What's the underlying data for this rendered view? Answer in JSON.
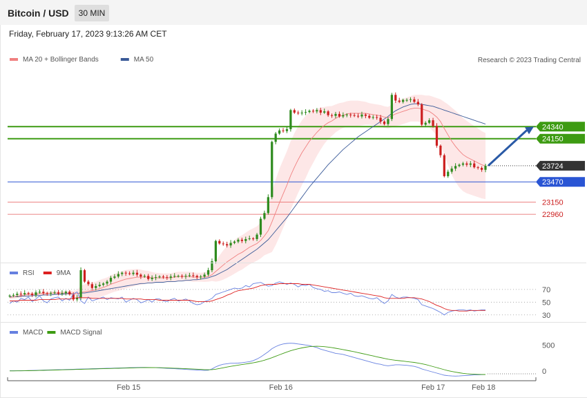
{
  "header": {
    "title": "Bitcoin / USD",
    "timeframe": "30 MIN"
  },
  "datetime": "Friday, February 17, 2023 9:13:26 AM CET",
  "colors": {
    "up": "#2e8b1e",
    "down": "#cc1f1f",
    "ma20": "#f08080",
    "bollinger": "#fde3e3",
    "ma50": "#3a5a98",
    "resistance": "#3d9b12",
    "support_line": "#2a55d4",
    "support_dotted": "#e65b5b",
    "rsi": "#6680e0",
    "rsi_ma": "#dd2020",
    "macd": "#6680e0",
    "macd_signal": "#3d9b12",
    "arrow": "#2a5aa6"
  },
  "chart_data": [
    {
      "type": "candlestick",
      "legend": [
        {
          "name": "MA 20 + Bollinger Bands",
          "color": "#f08080"
        },
        {
          "name": "MA 50",
          "color": "#3a5a98"
        }
      ],
      "source": "Research © 2023 Trading Central",
      "ylim": [
        22200,
        25300
      ],
      "levels": [
        {
          "value": 24340,
          "label": "24340",
          "kind": "resistance"
        },
        {
          "value": 24150,
          "label": "24150",
          "kind": "resistance"
        },
        {
          "value": 23724,
          "label": "23724",
          "kind": "last-price"
        },
        {
          "value": 23470,
          "label": "23470",
          "kind": "pivot"
        },
        {
          "value": 23150,
          "label": "23150",
          "kind": "support"
        },
        {
          "value": 22960,
          "label": "22960",
          "kind": "support"
        }
      ],
      "xtick_labels": [
        {
          "label": "Feb 15",
          "x": 25
        },
        {
          "label": "Feb 16",
          "x": 57
        },
        {
          "label": "Feb 17",
          "x": 89
        },
        {
          "label": "Feb 18",
          "x": 99.6
        }
      ],
      "closes": [
        21680,
        21690,
        21710,
        21700,
        21720,
        21710,
        21690,
        21730,
        21740,
        21720,
        21710,
        21720,
        21730,
        21710,
        21720,
        21740,
        21700,
        21620,
        21650,
        22080,
        21900,
        21860,
        21800,
        21830,
        21850,
        21870,
        21900,
        21960,
        21980,
        22020,
        22040,
        22030,
        22020,
        22040,
        22010,
        21980,
        21990,
        21940,
        21960,
        21970,
        21980,
        21970,
        21960,
        21980,
        21990,
        21990,
        21980,
        21990,
        22000,
        21990,
        21970,
        21980,
        22010,
        22080,
        22220,
        22540,
        22500,
        22490,
        22470,
        22510,
        22530,
        22560,
        22540,
        22570,
        22580,
        22570,
        22640,
        22890,
        22980,
        23230,
        24100,
        24230,
        24280,
        24270,
        24300,
        24600,
        24560,
        24550,
        24560,
        24570,
        24590,
        24580,
        24600,
        24560,
        24580,
        24520,
        24510,
        24540,
        24500,
        24520,
        24530,
        24520,
        24510,
        24500,
        24530,
        24510,
        24480,
        24490,
        24480,
        24420,
        24380,
        24460,
        24840,
        24750,
        24730,
        24760,
        24760,
        24770,
        24730,
        24690,
        24370,
        24400,
        24440,
        24350,
        24040,
        23890,
        23560,
        23630,
        23680,
        23720,
        23740,
        23760,
        23740,
        23760,
        23700,
        23690,
        23660,
        23724
      ],
      "ma20": [
        21650,
        21660,
        21670,
        21680,
        21690,
        21700,
        21700,
        21700,
        21710,
        21710,
        21710,
        21720,
        21720,
        21720,
        21720,
        21720,
        21720,
        21710,
        21710,
        21730,
        21740,
        21750,
        21760,
        21770,
        21790,
        21810,
        21830,
        21860,
        21880,
        21900,
        21920,
        21940,
        21950,
        21960,
        21970,
        21970,
        21970,
        21970,
        21960,
        21960,
        21960,
        21960,
        21960,
        21960,
        21970,
        21980,
        21980,
        21980,
        21980,
        21970,
        21970,
        21970,
        21970,
        21980,
        22010,
        22060,
        22110,
        22160,
        22210,
        22250,
        22290,
        22330,
        22360,
        22400,
        22440,
        22470,
        22500,
        22550,
        22620,
        22700,
        22840,
        22990,
        23140,
        23280,
        23420,
        23570,
        23700,
        23820,
        23930,
        24020,
        24110,
        24180,
        24250,
        24310,
        24360,
        24400,
        24430,
        24470,
        24500,
        24520,
        24540,
        24550,
        24550,
        24550,
        24550,
        24550,
        24540,
        24530,
        24520,
        24510,
        24490,
        24480,
        24510,
        24540,
        24560,
        24580,
        24600,
        24620,
        24630,
        24630,
        24620,
        24600,
        24580,
        24540,
        24490,
        24420,
        24310,
        24210,
        24110,
        24030,
        23960,
        23900,
        23860,
        23830,
        23800,
        23770,
        23740,
        23720
      ],
      "bb_width": [
        60,
        60,
        60,
        60,
        60,
        60,
        60,
        60,
        60,
        60,
        60,
        60,
        60,
        60,
        60,
        60,
        70,
        90,
        110,
        210,
        240,
        250,
        260,
        260,
        270,
        270,
        270,
        280,
        280,
        290,
        290,
        290,
        280,
        270,
        260,
        240,
        210,
        200,
        180,
        160,
        150,
        140,
        140,
        140,
        150,
        150,
        150,
        150,
        150,
        150,
        140,
        140,
        150,
        160,
        200,
        320,
        400,
        460,
        500,
        520,
        530,
        540,
        540,
        540,
        540,
        540,
        540,
        570,
        610,
        720,
        950,
        1030,
        1070,
        1070,
        1070,
        1080,
        1070,
        1050,
        1020,
        980,
        900,
        820,
        740,
        660,
        580,
        520,
        470,
        440,
        420,
        400,
        400,
        400,
        400,
        400,
        380,
        360,
        340,
        340,
        340,
        340,
        340,
        340,
        360,
        380,
        400,
        400,
        400,
        400,
        420,
        420,
        440,
        460,
        500,
        540,
        600,
        700,
        840,
        960,
        1060,
        1120,
        1150,
        1150,
        1140,
        1120,
        1100,
        1080,
        1060,
        1040
      ],
      "ma50": [
        21660,
        21660,
        21660,
        21670,
        21670,
        21670,
        21680,
        21680,
        21680,
        21690,
        21690,
        21690,
        21700,
        21700,
        21700,
        21710,
        21710,
        21710,
        21710,
        21720,
        21720,
        21730,
        21740,
        21750,
        21760,
        21770,
        21780,
        21790,
        21800,
        21810,
        21820,
        21830,
        21840,
        21850,
        21860,
        21870,
        21870,
        21880,
        21880,
        21890,
        21890,
        21890,
        21900,
        21900,
        21900,
        21910,
        21910,
        21920,
        21920,
        21930,
        21930,
        21940,
        21950,
        21960,
        21980,
        22000,
        22030,
        22060,
        22090,
        22130,
        22170,
        22210,
        22250,
        22290,
        22330,
        22370,
        22410,
        22460,
        22510,
        22560,
        22630,
        22700,
        22770,
        22840,
        22910,
        22990,
        23070,
        23150,
        23230,
        23310,
        23390,
        23460,
        23530,
        23600,
        23670,
        23740,
        23800,
        23860,
        23920,
        23980,
        24030,
        24080,
        24130,
        24180,
        24220,
        24260,
        24300,
        24340,
        24380,
        24420,
        24460,
        24500,
        24550,
        24590,
        24620,
        24650,
        24670,
        24690,
        24700,
        24700,
        24690,
        24680,
        24670,
        24660,
        24640,
        24620,
        24600,
        24580,
        24560,
        24540,
        24520,
        24500,
        24480,
        24460,
        24440,
        24420,
        24400,
        24380
      ]
    },
    {
      "type": "line",
      "legend": [
        {
          "name": "RSI",
          "color": "#6680e0"
        },
        {
          "name": "9MA",
          "color": "#dd2020"
        }
      ],
      "ylim": [
        20,
        85
      ],
      "yticks": [
        70,
        50,
        30
      ],
      "series": [
        {
          "name": "RSI",
          "values": [
            48,
            52,
            50,
            56,
            54,
            58,
            51,
            55,
            60,
            52,
            49,
            55,
            57,
            58,
            52,
            56,
            53,
            63,
            66,
            52,
            48,
            58,
            52,
            54,
            56,
            58,
            54,
            57,
            56,
            55,
            58,
            50,
            53,
            56,
            54,
            49,
            51,
            54,
            50,
            55,
            55,
            52,
            51,
            54,
            56,
            52,
            53,
            55,
            52,
            48,
            46,
            47,
            51,
            53,
            56,
            62,
            64,
            66,
            68,
            70,
            72,
            71,
            72,
            76,
            74,
            79,
            80,
            81,
            78,
            75,
            76,
            80,
            82,
            80,
            78,
            80,
            78,
            74,
            77,
            76,
            78,
            73,
            71,
            70,
            67,
            68,
            65,
            65,
            66,
            64,
            62,
            64,
            60,
            59,
            60,
            58,
            56,
            55,
            57,
            52,
            48,
            52,
            62,
            58,
            56,
            58,
            58,
            57,
            56,
            54,
            46,
            44,
            42,
            40,
            37,
            34,
            30,
            34,
            36,
            37,
            38,
            38,
            37,
            38,
            36,
            37,
            38,
            38
          ]
        },
        {
          "name": "9MA",
          "values": [
            52,
            52,
            52,
            53,
            53,
            53,
            53,
            53,
            54,
            54,
            54,
            54,
            54,
            55,
            55,
            55,
            55,
            56,
            57,
            57,
            57,
            57,
            56,
            56,
            56,
            56,
            56,
            56,
            56,
            56,
            56,
            55,
            55,
            55,
            55,
            55,
            54,
            54,
            54,
            54,
            53,
            53,
            53,
            53,
            53,
            53,
            53,
            53,
            53,
            52,
            51,
            51,
            51,
            51,
            52,
            54,
            56,
            58,
            61,
            63,
            66,
            68,
            69,
            70,
            71,
            72,
            74,
            76,
            77,
            78,
            78,
            78,
            79,
            79,
            79,
            79,
            79,
            79,
            78,
            78,
            78,
            77,
            76,
            75,
            74,
            73,
            72,
            71,
            70,
            69,
            68,
            67,
            66,
            65,
            64,
            63,
            62,
            61,
            60,
            59,
            57,
            56,
            56,
            56,
            56,
            56,
            57,
            57,
            57,
            56,
            55,
            53,
            51,
            48,
            45,
            43,
            40,
            38,
            37,
            37,
            36,
            36,
            36,
            37,
            37,
            37,
            37,
            37
          ]
        }
      ]
    },
    {
      "type": "line",
      "legend": [
        {
          "name": "MACD",
          "color": "#6680e0"
        },
        {
          "name": "MACD Signal",
          "color": "#3d9b12"
        }
      ],
      "ylim": [
        -120,
        650
      ],
      "yticks": [
        500,
        0
      ],
      "series": [
        {
          "name": "MACD",
          "values": [
            5,
            5,
            5,
            6,
            8,
            10,
            12,
            14,
            16,
            18,
            20,
            22,
            24,
            26,
            28,
            30,
            32,
            34,
            36,
            38,
            40,
            42,
            44,
            46,
            48,
            50,
            52,
            54,
            56,
            58,
            60,
            62,
            64,
            66,
            68,
            70,
            70,
            68,
            66,
            64,
            60,
            56,
            52,
            48,
            44,
            40,
            36,
            32,
            28,
            24,
            20,
            16,
            12,
            15,
            40,
            80,
            110,
            130,
            140,
            150,
            150,
            152,
            160,
            170,
            180,
            200,
            230,
            270,
            320,
            370,
            430,
            470,
            500,
            520,
            530,
            535,
            530,
            520,
            510,
            500,
            490,
            470,
            450,
            420,
            400,
            380,
            360,
            340,
            330,
            320,
            300,
            280,
            260,
            240,
            220,
            200,
            180,
            160,
            140,
            130,
            110,
            100,
            110,
            120,
            120,
            115,
            110,
            100,
            90,
            70,
            40,
            20,
            0,
            -20,
            -40,
            -60,
            -80,
            -90,
            -95,
            -98,
            -95,
            -90,
            -85,
            -80,
            -75,
            -72,
            -70,
            -68
          ]
        },
        {
          "name": "MACD Signal",
          "values": [
            2,
            2,
            3,
            4,
            5,
            6,
            7,
            9,
            11,
            13,
            15,
            17,
            19,
            21,
            23,
            25,
            27,
            29,
            31,
            33,
            35,
            37,
            39,
            41,
            43,
            45,
            47,
            49,
            51,
            53,
            55,
            57,
            59,
            61,
            63,
            65,
            66,
            66,
            66,
            65,
            64,
            62,
            60,
            57,
            54,
            51,
            48,
            45,
            42,
            38,
            35,
            31,
            28,
            25,
            27,
            35,
            48,
            62,
            76,
            90,
            102,
            113,
            124,
            135,
            146,
            158,
            172,
            188,
            208,
            230,
            256,
            284,
            312,
            340,
            366,
            390,
            410,
            428,
            444,
            458,
            468,
            474,
            476,
            474,
            468,
            460,
            450,
            438,
            426,
            412,
            398,
            384,
            370,
            354,
            338,
            322,
            306,
            290,
            273,
            258,
            242,
            228,
            216,
            206,
            198,
            190,
            182,
            174,
            165,
            154,
            140,
            124,
            106,
            86,
            66,
            46,
            26,
            8,
            -8,
            -22,
            -34,
            -44,
            -52,
            -58,
            -62,
            -64,
            -66,
            -67
          ]
        }
      ]
    }
  ]
}
